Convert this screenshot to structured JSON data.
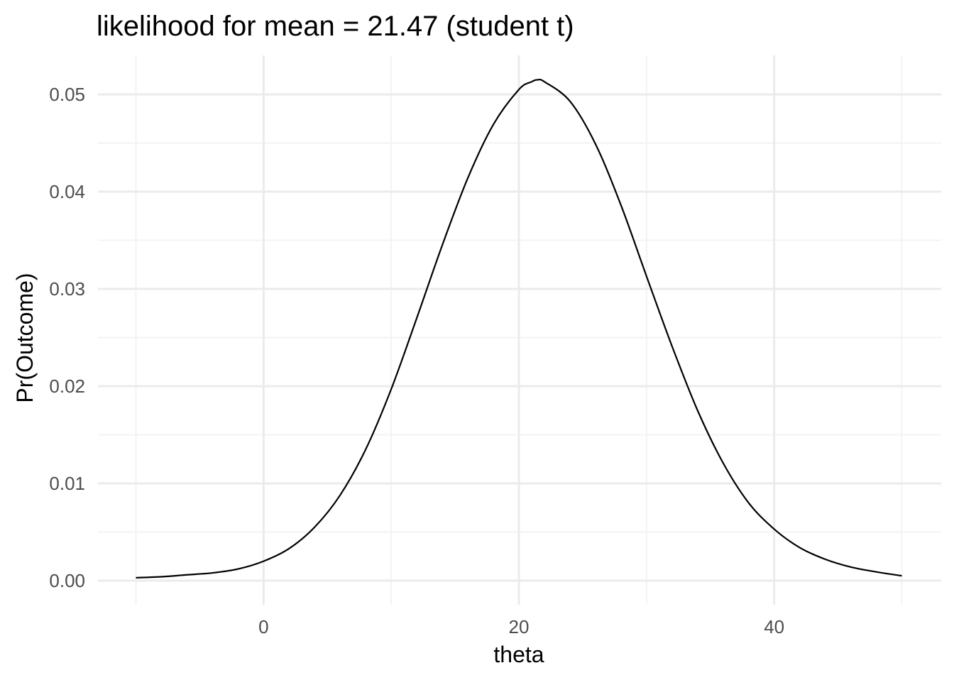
{
  "chart_data": {
    "type": "line",
    "title": "likelihood for mean = 21.47 (student t)",
    "xlabel": "theta",
    "ylabel": "Pr(Outcome)",
    "xlim": [
      -10,
      50
    ],
    "ylim": [
      0,
      0.05
    ],
    "x_ticks": [
      0,
      20,
      40
    ],
    "x_tick_labels": [
      "0",
      "20",
      "40"
    ],
    "x_minor_ticks": [
      -10,
      10,
      30,
      50
    ],
    "y_ticks": [
      0,
      0.01,
      0.02,
      0.03,
      0.04,
      0.05
    ],
    "y_tick_labels": [
      "0.00",
      "0.01",
      "0.02",
      "0.03",
      "0.04",
      "0.05"
    ],
    "y_minor_ticks": [
      0.005,
      0.015,
      0.025,
      0.035,
      0.045
    ],
    "grid": true,
    "legend": "none",
    "series": [
      {
        "x": [
          -10,
          -8,
          -6,
          -4,
          -2,
          0,
          2,
          4,
          6,
          8,
          10,
          12,
          14,
          16,
          18,
          20,
          21,
          21.47,
          22,
          24,
          26,
          28,
          30,
          32,
          34,
          36,
          38,
          40,
          42,
          44,
          46,
          48,
          50
        ],
        "y": [
          0.0003,
          0.0004,
          0.0006,
          0.0008,
          0.0012,
          0.002,
          0.0033,
          0.0055,
          0.0088,
          0.0135,
          0.0197,
          0.027,
          0.0345,
          0.0414,
          0.0469,
          0.0505,
          0.0513,
          0.0515,
          0.0513,
          0.0493,
          0.0449,
          0.0386,
          0.0313,
          0.0241,
          0.0175,
          0.0121,
          0.008,
          0.0053,
          0.0034,
          0.0022,
          0.0014,
          0.0009,
          0.0005
        ]
      }
    ]
  }
}
